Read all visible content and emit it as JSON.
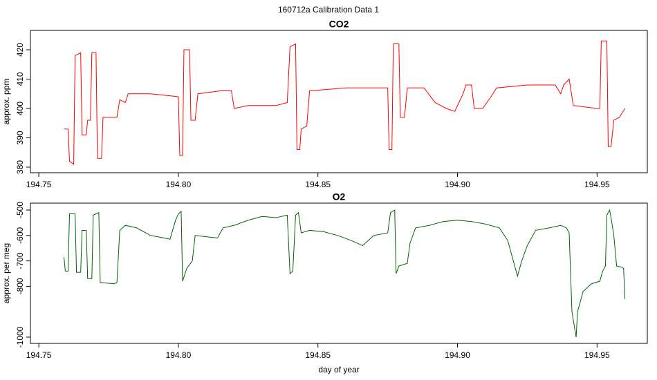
{
  "title": "160712a   Calibration Data 1",
  "chart_data": [
    {
      "type": "line",
      "title": "CO2",
      "ylabel": "approx. ppm",
      "x": [
        194.759,
        194.7605,
        194.761,
        194.7625,
        194.763,
        194.765,
        194.7655,
        194.767,
        194.7675,
        194.7685,
        194.769,
        194.7705,
        194.771,
        194.7725,
        194.773,
        194.778,
        194.779,
        194.781,
        194.782,
        194.79,
        194.8,
        194.8005,
        194.8015,
        194.802,
        194.804,
        194.8045,
        194.806,
        194.807,
        194.815,
        194.819,
        194.82,
        194.825,
        194.835,
        194.839,
        194.84,
        194.842,
        194.8425,
        194.8435,
        194.844,
        194.846,
        194.847,
        194.86,
        194.875,
        194.8755,
        194.8765,
        194.877,
        194.879,
        194.8795,
        194.881,
        194.882,
        194.888,
        194.892,
        194.896,
        194.899,
        194.902,
        194.903,
        194.905,
        194.906,
        194.909,
        194.912,
        194.914,
        194.925,
        194.935,
        194.937,
        194.938,
        194.94,
        194.9415,
        194.95,
        194.951,
        194.9515,
        194.9535,
        194.954,
        194.955,
        194.956,
        194.958,
        194.96
      ],
      "series": [
        {
          "color": "#ff0000",
          "values": [
            393,
            393,
            382,
            381,
            418,
            419,
            391,
            391,
            396,
            396,
            419,
            419,
            383,
            383,
            397,
            397,
            403,
            402,
            405,
            405,
            404,
            384,
            384,
            420,
            420,
            396,
            396,
            405,
            406,
            406,
            400,
            401,
            401,
            402,
            421,
            422,
            386,
            386,
            393,
            394,
            406,
            407,
            407,
            386,
            386,
            422,
            422,
            397,
            397,
            407,
            407,
            402,
            400,
            399,
            405,
            408,
            408,
            400,
            400,
            404,
            407,
            408,
            408,
            405,
            408,
            410,
            401,
            400,
            400,
            423,
            423,
            387,
            387,
            396,
            397,
            400
          ]
        }
      ],
      "xlim": [
        194.747,
        194.968
      ],
      "ylim": [
        378.1,
        426.6
      ],
      "xticks": [
        194.75,
        {
          "value": 194.8,
          "label": "194.80"
        },
        194.85,
        {
          "value": 194.9,
          "label": "194.90"
        },
        194.95
      ],
      "yticks": [
        380,
        390,
        400,
        410,
        420
      ]
    },
    {
      "type": "line",
      "title": "O2",
      "ylabel": "approx. per meg",
      "xlabel": "day of year",
      "x": [
        194.759,
        194.7595,
        194.7605,
        194.761,
        194.763,
        194.7635,
        194.765,
        194.7655,
        194.767,
        194.7675,
        194.769,
        194.7695,
        194.7715,
        194.772,
        194.777,
        194.778,
        194.779,
        194.781,
        194.785,
        194.79,
        194.795,
        194.797,
        194.799,
        194.8,
        194.801,
        194.8015,
        194.803,
        194.805,
        194.806,
        194.81,
        194.814,
        194.816,
        194.82,
        194.825,
        194.83,
        194.835,
        194.839,
        194.84,
        194.841,
        194.842,
        194.843,
        194.844,
        194.847,
        194.852,
        194.857,
        194.862,
        194.866,
        194.87,
        194.875,
        194.876,
        194.8775,
        194.878,
        194.879,
        194.882,
        194.883,
        194.885,
        194.89,
        194.895,
        194.9,
        194.905,
        194.91,
        194.915,
        194.918,
        194.92,
        194.9215,
        194.923,
        194.925,
        194.928,
        194.933,
        194.937,
        194.939,
        194.94,
        194.941,
        194.9425,
        194.943,
        194.945,
        194.948,
        194.951,
        194.952,
        194.953,
        194.9535,
        194.9545,
        194.955,
        194.956,
        194.957,
        194.959,
        194.9595,
        194.96
      ],
      "series": [
        {
          "color": "#006400",
          "values": [
            -685,
            -740,
            -740,
            -515,
            -515,
            -745,
            -745,
            -580,
            -580,
            -770,
            -770,
            -520,
            -510,
            -785,
            -790,
            -785,
            -580,
            -560,
            -570,
            -600,
            -610,
            -615,
            -540,
            -515,
            -505,
            -780,
            -730,
            -700,
            -600,
            -605,
            -610,
            -570,
            -560,
            -540,
            -525,
            -530,
            -520,
            -750,
            -740,
            -520,
            -510,
            -590,
            -580,
            -585,
            -600,
            -620,
            -640,
            -600,
            -590,
            -510,
            -500,
            -750,
            -720,
            -710,
            -630,
            -570,
            -560,
            -545,
            -540,
            -545,
            -555,
            -570,
            -620,
            -700,
            -760,
            -700,
            -640,
            -580,
            -570,
            -560,
            -570,
            -590,
            -900,
            -1000,
            -900,
            -820,
            -790,
            -780,
            -740,
            -720,
            -520,
            -500,
            -530,
            -600,
            -720,
            -725,
            -730,
            -850
          ]
        }
      ],
      "xlim": [
        194.747,
        194.968
      ],
      "ylim": [
        -1024.5,
        -472.8
      ],
      "xticks": [
        194.75,
        {
          "value": 194.8,
          "label": "194.80"
        },
        194.85,
        {
          "value": 194.9,
          "label": "194.90"
        },
        194.95
      ],
      "yticks": [
        -500,
        -600,
        -700,
        -800,
        -1000
      ]
    }
  ]
}
